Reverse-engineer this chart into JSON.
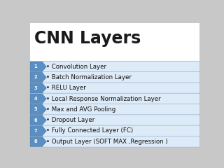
{
  "title": "CNN Layers",
  "title_fontsize": 17,
  "title_color": "#1a1a1a",
  "background_color": "#e8e8e8",
  "title_bg": "#ffffff",
  "items": [
    "• Convolution Layer",
    "• Batch Normalization Layer",
    "• RELU Layer",
    "• Local Response Normalization Layer",
    "• Max and AVG Pooling",
    "• Dropout Layer",
    "• Fully Connected Layer (FC)",
    "• Output Layer (SOFT MAX ,Regression )"
  ],
  "numbers": [
    "1",
    "2",
    "3",
    "4",
    "5",
    "6",
    "7",
    "8"
  ],
  "box_facecolor": "#ddeaf7",
  "box_edgecolor": "#a0b8d0",
  "chevron_face": "#5a8fc4",
  "chevron_edge": "#3a6a9a",
  "number_color": "#ffffff",
  "text_color": "#111111",
  "text_fontsize": 6.2,
  "number_fontsize": 4.8,
  "fig_bg": "#c8c8c8"
}
